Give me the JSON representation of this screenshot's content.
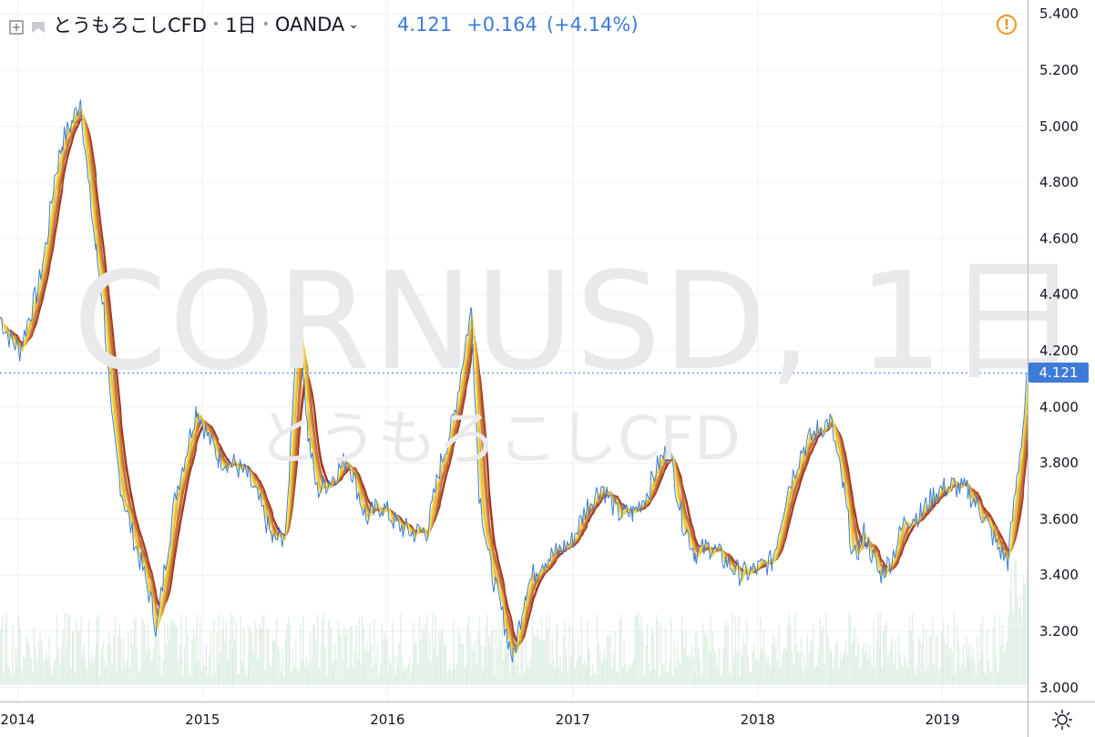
{
  "header": {
    "symbol": "とうもろこしCFD",
    "interval": "1日",
    "exchange": "OANDA",
    "last_price": "4.121",
    "change": "+0.164",
    "change_pct": "(+4.14%)"
  },
  "watermark": {
    "main": "CORNUSD, 1日",
    "sub": "とうもろこしCFD"
  },
  "price_axis": {
    "labels": [
      "5.400",
      "5.200",
      "5.000",
      "4.800",
      "4.600",
      "4.400",
      "4.200",
      "4.000",
      "3.800",
      "3.600",
      "3.400",
      "3.200",
      "3.000"
    ],
    "current_label": "4.121"
  },
  "time_axis": {
    "labels": [
      "2014",
      "2015",
      "2016",
      "2017",
      "2018",
      "2019"
    ]
  },
  "colors": {
    "price_line": "#3d7bd8",
    "ribbon_fast": "#f7e04a",
    "ribbon_slow": "#a0291c",
    "volume": "#c9e3cf",
    "grid": "#eef0f3",
    "warning": "#f7931a"
  },
  "chart_data": {
    "type": "line",
    "ylim": [
      2.95,
      5.45
    ],
    "x_range": [
      "2013-11-27",
      "2019-06-18"
    ],
    "series": [
      {
        "name": "CORNUSD",
        "points": [
          [
            "2013-11-27",
            4.32
          ],
          [
            "2013-12-15",
            4.25
          ],
          [
            "2014-01-05",
            4.2
          ],
          [
            "2014-01-20",
            4.3
          ],
          [
            "2014-02-10",
            4.42
          ],
          [
            "2014-02-28",
            4.6
          ],
          [
            "2014-03-15",
            4.82
          ],
          [
            "2014-03-31",
            4.95
          ],
          [
            "2014-04-20",
            5.02
          ],
          [
            "2014-05-05",
            5.1
          ],
          [
            "2014-05-20",
            4.8
          ],
          [
            "2014-06-05",
            4.55
          ],
          [
            "2014-06-20",
            4.35
          ],
          [
            "2014-07-05",
            3.95
          ],
          [
            "2014-07-25",
            3.7
          ],
          [
            "2014-08-15",
            3.55
          ],
          [
            "2014-09-05",
            3.42
          ],
          [
            "2014-09-25",
            3.28
          ],
          [
            "2014-10-02",
            3.2
          ],
          [
            "2014-10-20",
            3.45
          ],
          [
            "2014-11-10",
            3.7
          ],
          [
            "2014-12-01",
            3.85
          ],
          [
            "2014-12-20",
            4.0
          ],
          [
            "2015-01-10",
            3.9
          ],
          [
            "2015-02-01",
            3.82
          ],
          [
            "2015-03-01",
            3.8
          ],
          [
            "2015-04-01",
            3.75
          ],
          [
            "2015-04-25",
            3.65
          ],
          [
            "2015-05-20",
            3.52
          ],
          [
            "2015-06-15",
            3.55
          ],
          [
            "2015-06-30",
            4.1
          ],
          [
            "2015-07-12",
            4.32
          ],
          [
            "2015-07-28",
            3.9
          ],
          [
            "2015-08-15",
            3.7
          ],
          [
            "2015-09-15",
            3.75
          ],
          [
            "2015-10-15",
            3.82
          ],
          [
            "2015-11-20",
            3.6
          ],
          [
            "2015-12-20",
            3.65
          ],
          [
            "2016-01-20",
            3.58
          ],
          [
            "2016-02-20",
            3.55
          ],
          [
            "2016-03-20",
            3.56
          ],
          [
            "2016-04-15",
            3.8
          ],
          [
            "2016-05-10",
            3.95
          ],
          [
            "2016-06-05",
            4.25
          ],
          [
            "2016-06-15",
            4.35
          ],
          [
            "2016-06-30",
            3.7
          ],
          [
            "2016-07-20",
            3.45
          ],
          [
            "2016-08-20",
            3.22
          ],
          [
            "2016-09-05",
            3.1
          ],
          [
            "2016-09-30",
            3.35
          ],
          [
            "2016-10-30",
            3.45
          ],
          [
            "2016-11-30",
            3.48
          ],
          [
            "2016-12-30",
            3.52
          ],
          [
            "2017-01-30",
            3.65
          ],
          [
            "2017-02-28",
            3.72
          ],
          [
            "2017-03-30",
            3.62
          ],
          [
            "2017-04-30",
            3.62
          ],
          [
            "2017-05-30",
            3.7
          ],
          [
            "2017-06-20",
            3.8
          ],
          [
            "2017-07-10",
            3.85
          ],
          [
            "2017-08-05",
            3.6
          ],
          [
            "2017-08-30",
            3.48
          ],
          [
            "2017-09-30",
            3.5
          ],
          [
            "2017-10-30",
            3.45
          ],
          [
            "2017-11-30",
            3.4
          ],
          [
            "2017-12-30",
            3.42
          ],
          [
            "2018-01-30",
            3.45
          ],
          [
            "2018-02-28",
            3.7
          ],
          [
            "2018-03-30",
            3.85
          ],
          [
            "2018-04-30",
            3.92
          ],
          [
            "2018-05-25",
            3.95
          ],
          [
            "2018-06-20",
            3.7
          ],
          [
            "2018-07-10",
            3.45
          ],
          [
            "2018-07-30",
            3.55
          ],
          [
            "2018-08-30",
            3.4
          ],
          [
            "2018-09-20",
            3.45
          ],
          [
            "2018-10-20",
            3.6
          ],
          [
            "2018-11-20",
            3.62
          ],
          [
            "2018-12-20",
            3.7
          ],
          [
            "2019-01-20",
            3.72
          ],
          [
            "2019-02-20",
            3.7
          ],
          [
            "2019-03-20",
            3.62
          ],
          [
            "2019-04-20",
            3.5
          ],
          [
            "2019-05-10",
            3.45
          ],
          [
            "2019-05-25",
            3.7
          ],
          [
            "2019-06-10",
            3.95
          ],
          [
            "2019-06-18",
            4.12
          ]
        ]
      }
    ],
    "ribbon": {
      "count": 8,
      "type": "moving-average",
      "ma_min_days": 8,
      "ma_max_days": 36
    },
    "current_value": 4.121
  }
}
